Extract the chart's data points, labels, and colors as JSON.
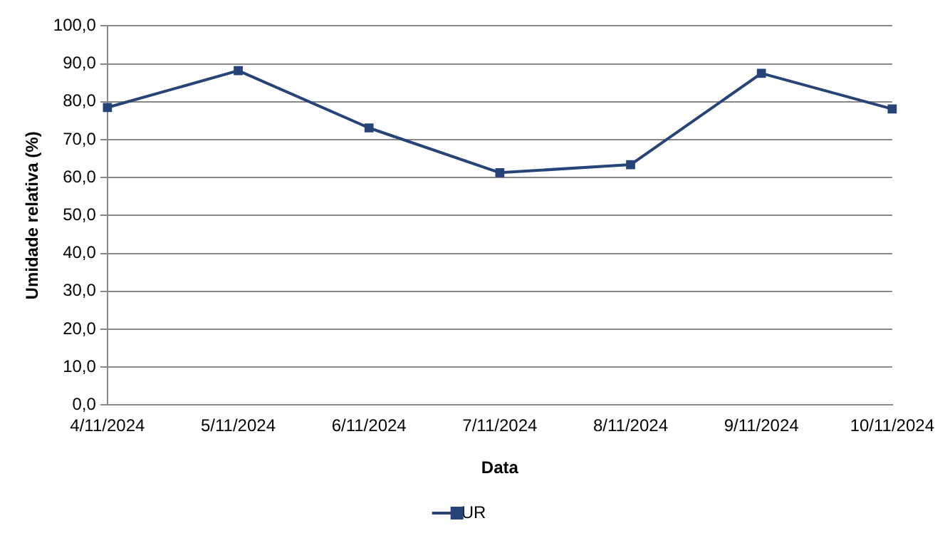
{
  "chart_data": {
    "type": "line",
    "xlabel": "Data",
    "ylabel": "Umidade relativa (%)",
    "categories": [
      "4/11/2024",
      "5/11/2024",
      "6/11/2024",
      "7/11/2024",
      "8/11/2024",
      "9/11/2024",
      "10/11/2024"
    ],
    "series": [
      {
        "name": "UR",
        "color": "#264478",
        "values": [
          78.5,
          88.2,
          73.1,
          61.3,
          63.4,
          87.5,
          78.1
        ]
      }
    ],
    "ylim": [
      0,
      100
    ],
    "yticks": [
      {
        "value": 0,
        "label": "0,0"
      },
      {
        "value": 10,
        "label": "10,0"
      },
      {
        "value": 20,
        "label": "20,0"
      },
      {
        "value": 30,
        "label": "30,0"
      },
      {
        "value": 40,
        "label": "40,0"
      },
      {
        "value": 50,
        "label": "50,0"
      },
      {
        "value": 60,
        "label": "60,0"
      },
      {
        "value": 70,
        "label": "70,0"
      },
      {
        "value": 80,
        "label": "80,0"
      },
      {
        "value": 90,
        "label": "90,0"
      },
      {
        "value": 100,
        "label": "100,0"
      }
    ],
    "grid": "y",
    "legend": "bottom",
    "marker": "square",
    "line_style": "solid"
  }
}
